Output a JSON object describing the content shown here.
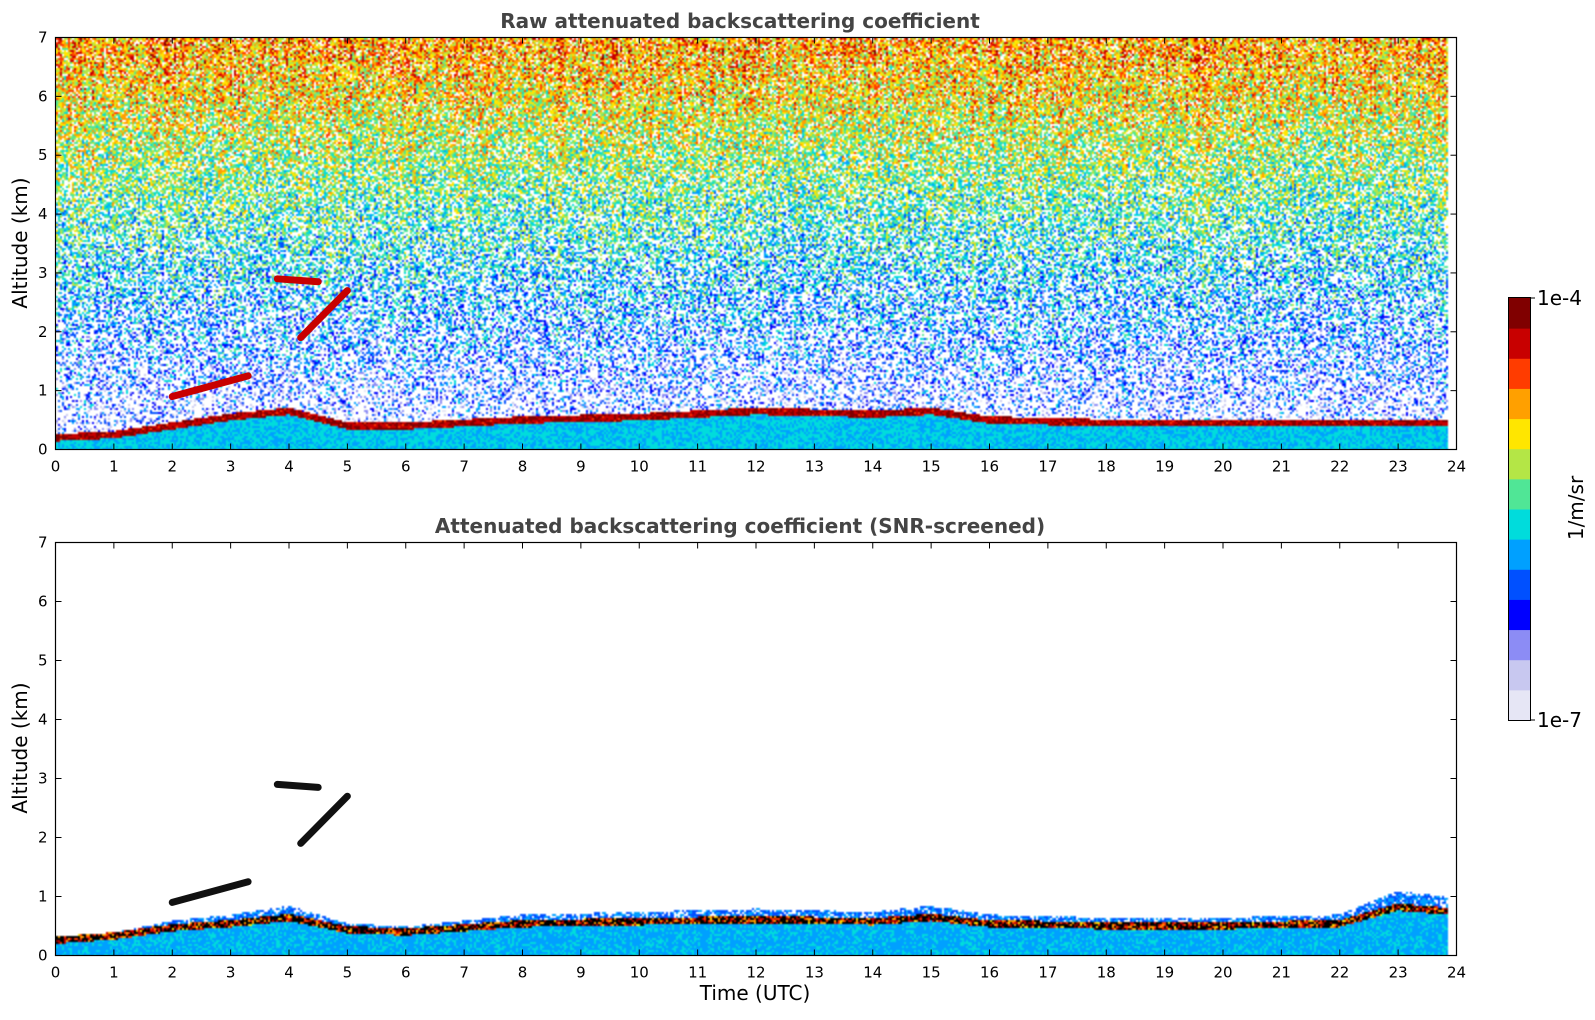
{
  "chart_data": [
    {
      "type": "heatmap",
      "title": "Raw attenuated backscattering coefficient",
      "xlabel": "",
      "ylabel": "Altitude (km)",
      "xlim": [
        0,
        24
      ],
      "ylim": [
        0,
        7
      ],
      "xticks": [
        "0",
        "1",
        "2",
        "3",
        "4",
        "5",
        "6",
        "7",
        "8",
        "9",
        "10",
        "11",
        "12",
        "13",
        "14",
        "15",
        "16",
        "17",
        "18",
        "19",
        "20",
        "21",
        "22",
        "23",
        "24"
      ],
      "yticks": [
        "0",
        "1",
        "2",
        "3",
        "4",
        "5",
        "6",
        "7"
      ],
      "data_end_time": 23.85,
      "cloud_base_layer": {
        "x": [
          0,
          1,
          2,
          3,
          4,
          5,
          6,
          8,
          10,
          12,
          14,
          15,
          16,
          18,
          20,
          22,
          23,
          23.85
        ],
        "y": [
          0.15,
          0.2,
          0.35,
          0.5,
          0.6,
          0.35,
          0.35,
          0.45,
          0.5,
          0.6,
          0.55,
          0.6,
          0.45,
          0.4,
          0.4,
          0.4,
          0.4,
          0.4
        ]
      },
      "elevated_layers": [
        {
          "x": [
            2.0,
            3.3
          ],
          "y": [
            0.9,
            1.25
          ]
        },
        {
          "x": [
            3.8,
            4.5
          ],
          "y": [
            2.9,
            2.85
          ]
        },
        {
          "x": [
            4.2,
            5.0
          ],
          "y": [
            1.9,
            2.7
          ]
        }
      ],
      "noise_level": "high above 3 km"
    },
    {
      "type": "heatmap",
      "title": "Attenuated backscattering coefficient (SNR-screened)",
      "xlabel": "Time (UTC)",
      "ylabel": "Altitude (km)",
      "xlim": [
        0,
        24
      ],
      "ylim": [
        0,
        7
      ],
      "xticks": [
        "0",
        "1",
        "2",
        "3",
        "4",
        "5",
        "6",
        "7",
        "8",
        "9",
        "10",
        "11",
        "12",
        "13",
        "14",
        "15",
        "16",
        "17",
        "18",
        "19",
        "20",
        "21",
        "22",
        "23",
        "24"
      ],
      "yticks": [
        "0",
        "1",
        "2",
        "3",
        "4",
        "5",
        "6",
        "7"
      ],
      "data_end_time": 23.85,
      "boundary_layer_top": {
        "x": [
          0,
          1,
          2,
          3,
          4,
          5,
          6,
          8,
          10,
          12,
          14,
          15,
          16,
          18,
          20,
          22,
          23,
          23.85
        ],
        "y": [
          0.3,
          0.4,
          0.6,
          0.7,
          0.85,
          0.55,
          0.5,
          0.7,
          0.75,
          0.8,
          0.75,
          0.85,
          0.7,
          0.65,
          0.65,
          0.7,
          1.1,
          1.0
        ]
      },
      "noise_level": "screened"
    }
  ],
  "colorbar": {
    "max_label": "1e-4",
    "min_label": "1e-7",
    "unit_label": "1/m/sr",
    "log_min": -7,
    "log_max": -4
  },
  "colors": {
    "text": "#000000",
    "title": "#444444",
    "ramp": [
      "#e6e6f5",
      "#c8c8f0",
      "#8c8cf5",
      "#0000ff",
      "#0050ff",
      "#00a0ff",
      "#00dcdc",
      "#50e696",
      "#b4e646",
      "#ffe600",
      "#ffa000",
      "#ff3c00",
      "#c80000",
      "#800000"
    ]
  }
}
